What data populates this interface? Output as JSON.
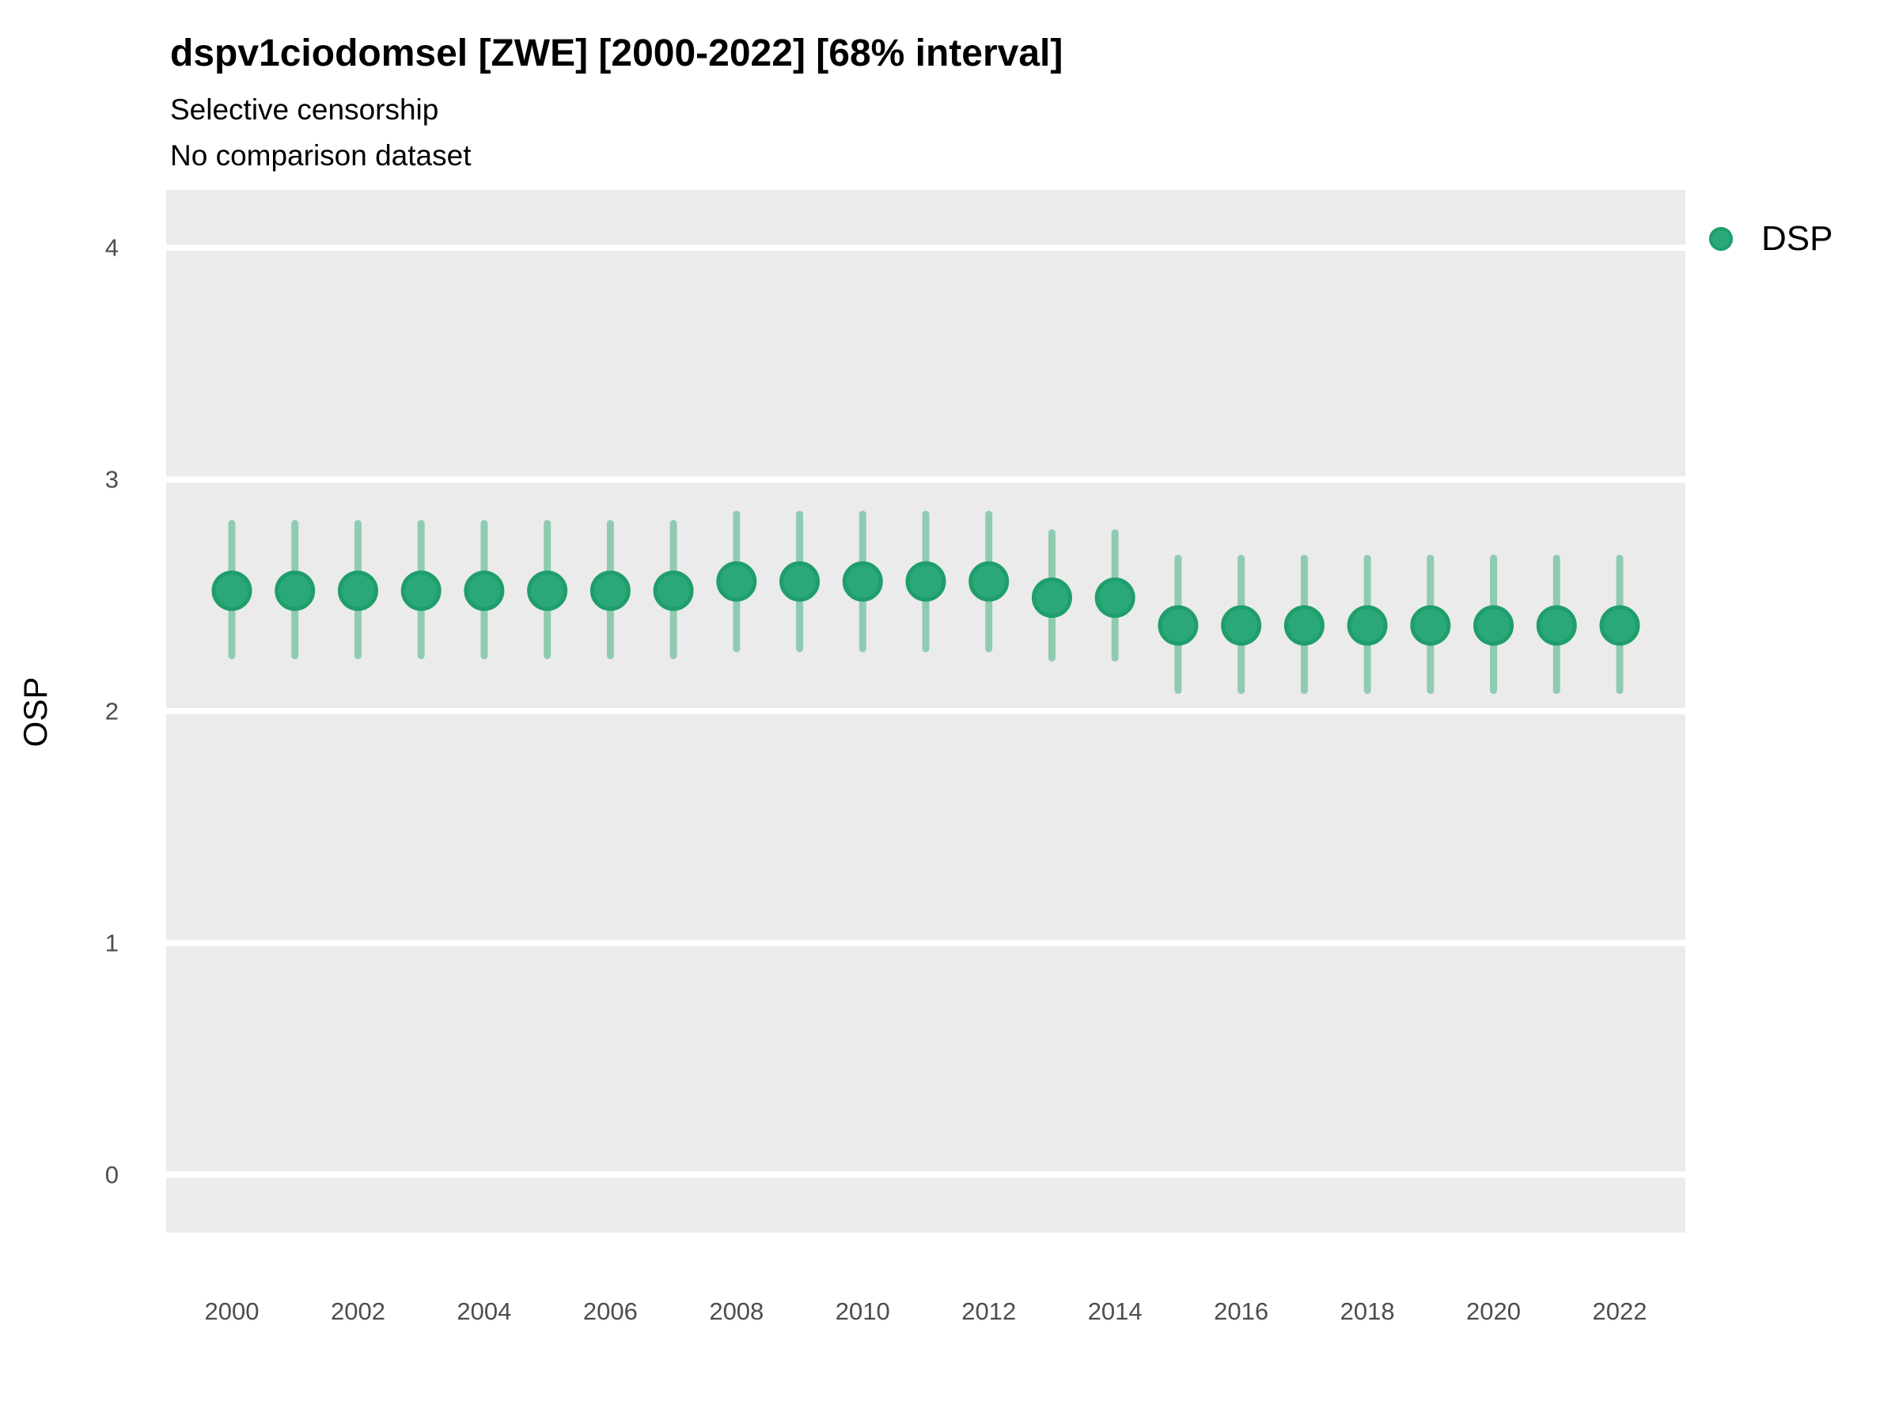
{
  "header": {
    "title": "dspv1ciodomsel [ZWE] [2000-2022] [68% interval]",
    "subtitle_line1": "Selective censorship",
    "subtitle_line2": "No comparison dataset"
  },
  "axes": {
    "y_title": "OSP",
    "y_ticks": [
      0,
      1,
      2,
      3,
      4
    ],
    "x_ticks": [
      2000,
      2002,
      2004,
      2006,
      2008,
      2010,
      2012,
      2014,
      2016,
      2018,
      2020,
      2022
    ]
  },
  "legend": {
    "position": "right",
    "items": [
      {
        "label": "DSP",
        "marker": "circle-icon",
        "color": "#2aa87a"
      }
    ]
  },
  "chart_data": {
    "type": "scatter",
    "subtype": "pointrange",
    "title": "dspv1ciodomsel [ZWE] [2000-2022] [68% interval]",
    "subtitle": [
      "Selective censorship",
      "No comparison dataset"
    ],
    "interval": "68%",
    "xlabel": "",
    "ylabel": "OSP",
    "ylim": [
      -0.25,
      4.25
    ],
    "grid": "horizontal-major-white-on-gray",
    "legend_position": "right",
    "x": [
      2000,
      2001,
      2002,
      2003,
      2004,
      2005,
      2006,
      2007,
      2008,
      2009,
      2010,
      2011,
      2012,
      2013,
      2014,
      2015,
      2016,
      2017,
      2018,
      2019,
      2020,
      2021,
      2022
    ],
    "series": [
      {
        "name": "DSP",
        "values": [
          2.52,
          2.52,
          2.52,
          2.52,
          2.52,
          2.52,
          2.52,
          2.52,
          2.56,
          2.56,
          2.56,
          2.56,
          2.56,
          2.49,
          2.49,
          2.37,
          2.37,
          2.37,
          2.37,
          2.37,
          2.37,
          2.37,
          2.37
        ],
        "lower_68": [
          2.24,
          2.24,
          2.24,
          2.24,
          2.24,
          2.24,
          2.24,
          2.24,
          2.27,
          2.27,
          2.27,
          2.27,
          2.27,
          2.23,
          2.23,
          2.09,
          2.09,
          2.09,
          2.09,
          2.09,
          2.09,
          2.09,
          2.09
        ],
        "upper_68": [
          2.81,
          2.81,
          2.81,
          2.81,
          2.81,
          2.81,
          2.81,
          2.81,
          2.85,
          2.85,
          2.85,
          2.85,
          2.85,
          2.77,
          2.77,
          2.66,
          2.66,
          2.66,
          2.66,
          2.66,
          2.66,
          2.66,
          2.66
        ]
      }
    ],
    "colors": {
      "point_fill": "#2aa87a",
      "point_stroke": "#1f9e6b",
      "errorbar": "#8fcbb1",
      "panel_background": "#ebebeb",
      "gridline": "#ffffff",
      "tick_label": "#4d4d4d",
      "text": "#000000"
    }
  }
}
